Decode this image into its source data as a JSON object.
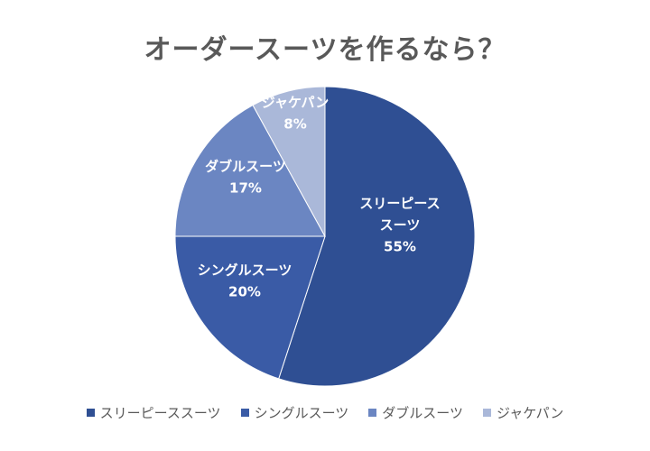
{
  "chart_data": {
    "type": "pie",
    "title": "オーダースーツを作るなら？",
    "slices": [
      {
        "label": "スリーピーススーツ",
        "value": 55,
        "color": "#2f4f93",
        "data_label": [
          "スリーピース",
          "スーツ",
          "55%"
        ]
      },
      {
        "label": "シングルスーツ",
        "value": 20,
        "color": "#3a5ba6",
        "data_label": [
          "シングルスーツ",
          "20%"
        ]
      },
      {
        "label": "ダブルスーツ",
        "value": 17,
        "color": "#6b86c2",
        "data_label": [
          "ダブルスーツ",
          "17%"
        ]
      },
      {
        "label": "ジャケパン",
        "value": 8,
        "color": "#aab8d9",
        "data_label": [
          "ジャケパン",
          "8%"
        ]
      }
    ],
    "legend_position": "bottom"
  }
}
